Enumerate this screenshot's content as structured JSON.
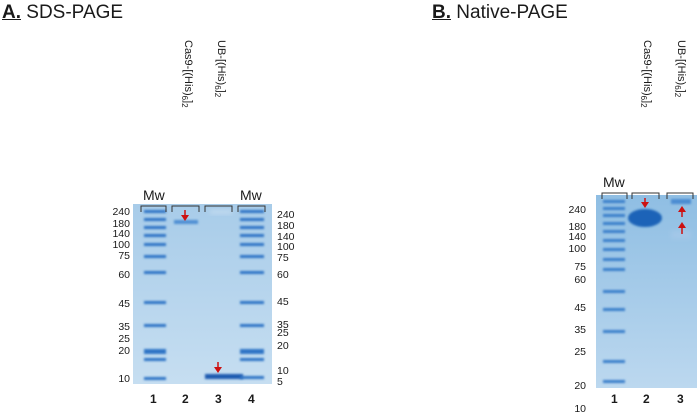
{
  "panelA": {
    "letter": "A.",
    "title": "SDS-PAGE",
    "mw_left": "Mw",
    "mw_right": "Mw",
    "lane_labels": [
      "Cas9-[(His)",
      "UB-[(His)"
    ],
    "left_markers": [
      "240",
      "180",
      "140",
      "100",
      "75",
      "60",
      "45",
      "35",
      "25",
      "20",
      "10"
    ],
    "right_markers": [
      "240",
      "180",
      "140",
      "100",
      "75",
      "60",
      "45",
      "35",
      "25",
      "20",
      "10",
      "5"
    ],
    "lane_numbers": [
      "1",
      "2",
      "3",
      "4"
    ]
  },
  "panelB": {
    "letter": "B.",
    "title": "Native-PAGE",
    "mw": "Mw",
    "lane_labels": [
      "Cas9-[(His)",
      "UB-[(His)"
    ],
    "markers": [
      "240",
      "180",
      "140",
      "100",
      "75",
      "60",
      "45",
      "35",
      "25",
      "20",
      "10"
    ],
    "lane_numbers": [
      "1",
      "2",
      "3"
    ]
  },
  "sub": {
    "six": "6",
    "two": "2"
  },
  "colors": {
    "gel": "#a9cde9",
    "band": "#1a64b8",
    "arrow": "#cc1111"
  }
}
